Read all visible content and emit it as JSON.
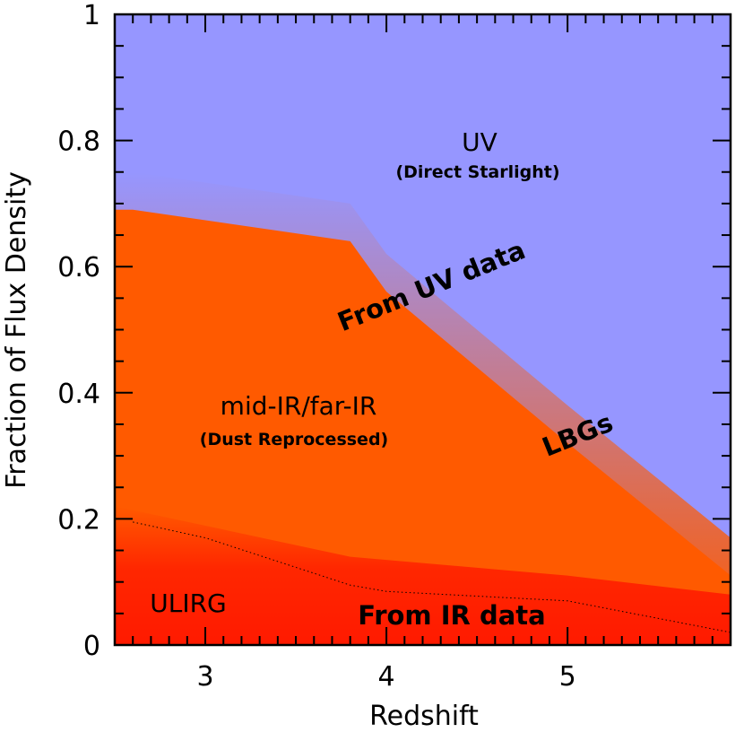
{
  "chart_data": {
    "type": "area",
    "xlabel": "Redshift",
    "ylabel": "Fraction of Flux Density",
    "xlim": [
      2.5,
      5.9
    ],
    "ylim": [
      0,
      1
    ],
    "x_ticks": [
      3,
      4,
      5
    ],
    "x_tick_labels": [
      "3",
      "4",
      "5"
    ],
    "y_ticks": [
      0,
      0.2,
      0.4,
      0.6,
      0.8,
      1
    ],
    "y_tick_labels": [
      "0",
      "0.2",
      "0.4",
      "0.6",
      "0.8",
      "1"
    ],
    "grid": false,
    "series": [
      {
        "name": "UV",
        "color": "#9696ff",
        "x": [
          2.5,
          5.9
        ],
        "y_lower": [
          0.75,
          0.17
        ],
        "y_upper": [
          1,
          1
        ]
      },
      {
        "name": "mid-IR/far-IR",
        "color": "#ff5a00",
        "x": [
          2.5,
          2.6,
          3.8,
          4.0,
          5.0,
          5.9
        ],
        "y_upper": [
          0.75,
          0.75,
          0.7,
          0.62,
          0.38,
          0.17
        ]
      },
      {
        "name": "ULIRG",
        "color": "#ff1a00",
        "x": [
          2.5,
          3.8,
          5.0,
          5.9
        ],
        "y_upper": [
          0.22,
          0.14,
          0.11,
          0.08
        ]
      },
      {
        "name": "IR data boundary",
        "style": "dotted",
        "x": [
          2.6,
          3.0,
          3.8,
          4.0,
          5.0,
          5.9
        ],
        "y": [
          0.195,
          0.17,
          0.095,
          0.085,
          0.07,
          0.02
        ]
      }
    ],
    "labels": {
      "uv": "UV",
      "uv_sub": "(Direct Starlight)",
      "ir": "mid-IR/far-IR",
      "ir_sub": "(Dust Reprocessed)",
      "from_uv": "From UV data",
      "lbgs": "LBGs",
      "ulirg": "ULIRG",
      "from_ir": "From IR data"
    }
  }
}
